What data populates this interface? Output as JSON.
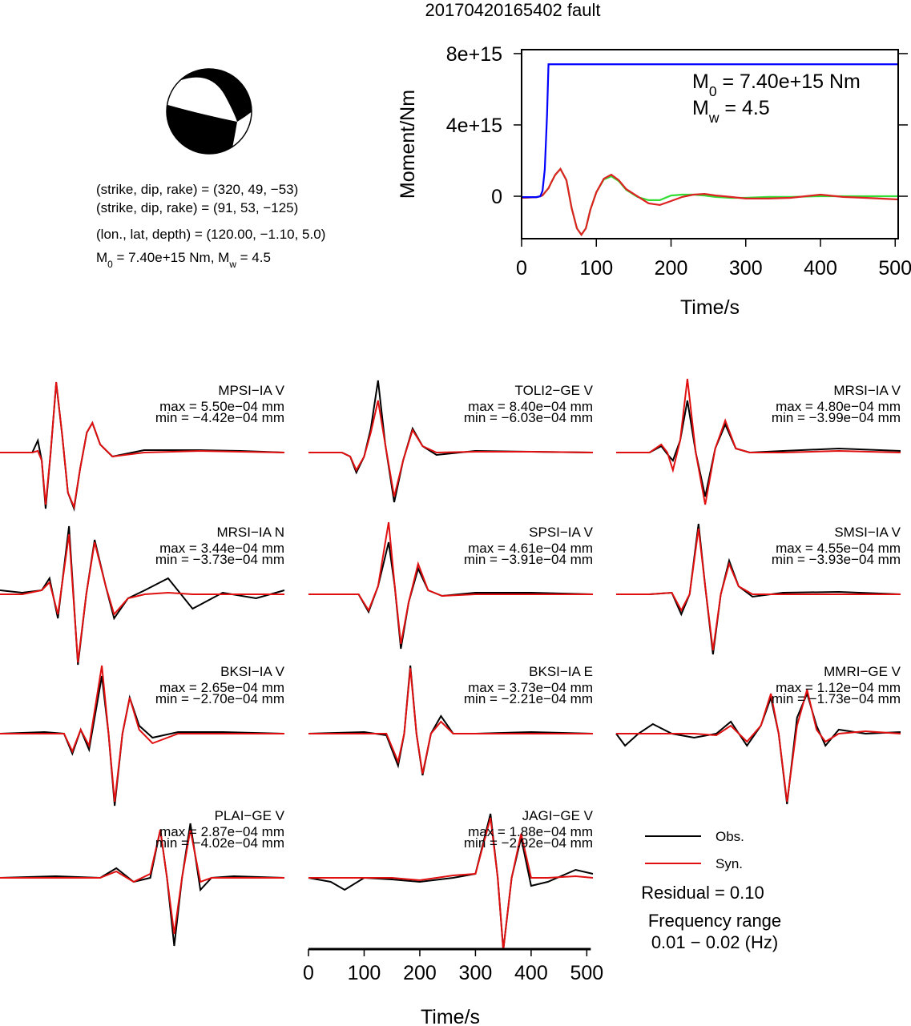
{
  "title": "20170420165402 fault",
  "focal_mechanism": {
    "lines": [
      "(strike, dip, rake) = (320, 49, −53)",
      "(strike, dip, rake) = (91, 53, −125)",
      "(lon., lat, depth) = (120.00, −1.10, 5.0)"
    ],
    "moment_line": [
      "M",
      "0",
      " = 7.40e+15 Nm, M",
      "w",
      " = 4.5"
    ]
  },
  "chart_data": [
    {
      "type": "line",
      "ylabel": "Moment/Nm",
      "xlabel": "Time/s",
      "annotations": [
        [
          "M",
          "0",
          " = 7.40e+15 Nm"
        ],
        [
          "M",
          "w",
          " = 4.5"
        ]
      ],
      "xlim": [
        0,
        504
      ],
      "xticks": [
        0,
        100,
        200,
        300,
        400,
        500
      ],
      "ylim": [
        -2380000000000000.0,
        8220000000000000.0
      ],
      "yticks": [
        {
          "value": 0,
          "label": "0"
        },
        {
          "value": 4000000000000000.0,
          "label": "4e+15"
        },
        {
          "value": 8000000000000000.0,
          "label": "8e+15"
        }
      ],
      "x": [
        0,
        20,
        25,
        28,
        31,
        34,
        36,
        40,
        45,
        52,
        60,
        67,
        74,
        80,
        86,
        92,
        100,
        110,
        120,
        130,
        140,
        155,
        170,
        185,
        200,
        215,
        230,
        245,
        260,
        280,
        300,
        330,
        360,
        400,
        430,
        460,
        504
      ],
      "series": [
        {
          "color": "#33dd33",
          "values": [
            -90000000000000.0,
            -50000000000000.0,
            0,
            50000000000000.0,
            200000000000000.0,
            350000000000000.0,
            450000000000000.0,
            800000000000000.0,
            1200000000000000.0,
            1530000000000000.0,
            900000000000000.0,
            -670000000000000.0,
            -1800000000000000.0,
            -2160000000000000.0,
            -1800000000000000.0,
            -760000000000000.0,
            220000000000000.0,
            940000000000000.0,
            1120000000000000.0,
            850000000000000.0,
            360000000000000.0,
            -40000000000000.0,
            -220000000000000.0,
            -220000000000000.0,
            40000000000000.0,
            90000000000000.0,
            90000000000000.0,
            40000000000000.0,
            -40000000000000.0,
            -90000000000000.0,
            -90000000000000.0,
            -40000000000000.0,
            -40000000000000.0,
            0,
            0,
            0,
            0
          ]
        },
        {
          "color": "#dd2222",
          "values": [
            -90000000000000.0,
            -50000000000000.0,
            0,
            50000000000000.0,
            200000000000000.0,
            350000000000000.0,
            450000000000000.0,
            800000000000000.0,
            1200000000000000.0,
            1530000000000000.0,
            900000000000000.0,
            -670000000000000.0,
            -1800000000000000.0,
            -2160000000000000.0,
            -1800000000000000.0,
            -760000000000000.0,
            220000000000000.0,
            980000000000000.0,
            1210000000000000.0,
            900000000000000.0,
            400000000000000.0,
            0,
            -400000000000000.0,
            -490000000000000.0,
            -270000000000000.0,
            -40000000000000.0,
            90000000000000.0,
            130000000000000.0,
            40000000000000.0,
            -40000000000000.0,
            -130000000000000.0,
            -130000000000000.0,
            -90000000000000.0,
            90000000000000.0,
            -40000000000000.0,
            -90000000000000.0,
            -180000000000000.0
          ]
        },
        {
          "color": "#0000ff",
          "values": [
            -50000000000000.0,
            -50000000000000.0,
            0,
            300000000000000.0,
            1500000000000000.0,
            4500000000000000.0,
            7400000000000000.0,
            7400000000000000.0,
            7400000000000000.0,
            7400000000000000.0,
            7400000000000000.0,
            7400000000000000.0,
            7400000000000000.0,
            7400000000000000.0,
            7400000000000000.0,
            7400000000000000.0,
            7400000000000000.0,
            7400000000000000.0,
            7400000000000000.0,
            7400000000000000.0,
            7400000000000000.0,
            7400000000000000.0,
            7400000000000000.0,
            7400000000000000.0,
            7400000000000000.0,
            7400000000000000.0,
            7400000000000000.0,
            7400000000000000.0,
            7400000000000000.0,
            7400000000000000.0,
            7400000000000000.0,
            7400000000000000.0,
            7400000000000000.0,
            7400000000000000.0,
            7400000000000000.0,
            7400000000000000.0,
            7400000000000000.0
          ]
        }
      ]
    },
    {
      "type": "waveforms",
      "xlabel": "Time/s",
      "xlim": [
        0,
        511
      ],
      "xticks": [
        0,
        100,
        200,
        300,
        400,
        500
      ],
      "legend": [
        {
          "name": "Obs.",
          "color": "#000000"
        },
        {
          "name": "Syn.",
          "color": "#e01010"
        }
      ],
      "residual": "Residual = 0.10",
      "frequency_title": "Frequency range",
      "frequency": "0.01 − 0.02 (Hz)",
      "panels": [
        {
          "station": "MPSI−IA V",
          "max": "max = 5.50e−04 mm",
          "min": "min = −4.42e−04 mm",
          "x": [
            0,
            58,
            68,
            75,
            82,
            91,
            101,
            112,
            122,
            133,
            144,
            156,
            166,
            180,
            202,
            259,
            360,
            432,
            511
          ],
          "obs": [
            0,
            0,
            0.15,
            -0.1,
            -0.7,
            0,
            0.87,
            0.2,
            -0.5,
            -0.7,
            -0.2,
            0.25,
            0.37,
            0.1,
            -0.05,
            0.03,
            0.03,
            0.02,
            0
          ],
          "syn": [
            0,
            0,
            0.02,
            -0.1,
            -0.65,
            0,
            0.88,
            0.2,
            -0.5,
            -0.68,
            -0.2,
            0.25,
            0.37,
            0.1,
            -0.05,
            0,
            0.02,
            0.01,
            0
          ]
        },
        {
          "station": "TOLI2−GE V",
          "max": "max = 8.40e−04 mm",
          "min": "min = −6.03e−04 mm",
          "x": [
            0,
            60,
            75,
            86,
            100,
            112,
            125,
            138,
            154,
            170,
            187,
            205,
            230,
            300,
            400,
            511
          ],
          "obs": [
            0,
            0,
            -0.05,
            -0.25,
            -0.05,
            0.3,
            0.9,
            0.1,
            -0.62,
            -0.1,
            0.3,
            0.08,
            -0.03,
            0.02,
            0.01,
            0
          ],
          "syn": [
            0,
            0,
            -0.05,
            -0.22,
            -0.05,
            0.25,
            0.65,
            0.1,
            -0.55,
            -0.1,
            0.28,
            0.08,
            0,
            0.01,
            0.01,
            0
          ]
        },
        {
          "station": "MRSI−IA V",
          "max": "max = 4.80e−04 mm",
          "min": "min = −3.99e−04 mm",
          "x": [
            0,
            60,
            81,
            92,
            102,
            115,
            128,
            143,
            160,
            178,
            196,
            215,
            240,
            300,
            400,
            511
          ],
          "obs": [
            0,
            0,
            0.08,
            -0.02,
            -0.1,
            0.15,
            0.65,
            0,
            -0.55,
            0.05,
            0.35,
            0.05,
            0,
            0.02,
            0.05,
            0.02
          ],
          "syn": [
            0,
            0,
            0.1,
            0,
            -0.22,
            0.15,
            0.92,
            0,
            -0.65,
            0.05,
            0.4,
            0.05,
            0,
            0,
            0.02,
            0
          ]
        },
        {
          "station": "MRSI−IA N",
          "max": "max = 3.44e−04 mm",
          "min": "min = −3.73e−04 mm",
          "x": [
            0,
            40,
            75,
            89,
            104,
            124,
            140,
            155,
            170,
            190,
            205,
            230,
            260,
            302,
            346,
            400,
            460,
            511
          ],
          "obs": [
            0.05,
            0.02,
            0.05,
            0.2,
            -0.3,
            0.85,
            -0.88,
            0,
            0.68,
            0.1,
            -0.3,
            -0.05,
            0.05,
            0.2,
            -0.18,
            0.02,
            -0.05,
            0.05
          ],
          "syn": [
            0,
            0,
            0.05,
            0.15,
            -0.25,
            0.75,
            -0.85,
            0,
            0.65,
            0.1,
            -0.25,
            -0.05,
            0,
            0.02,
            0,
            0,
            0,
            0
          ]
        },
        {
          "station": "SPSI−IA V",
          "max": "max = 4.61e−04 mm",
          "min": "min = −3.91e−04 mm",
          "x": [
            0,
            60,
            90,
            108,
            125,
            144,
            155,
            166,
            180,
            197,
            215,
            240,
            300,
            400,
            511
          ],
          "obs": [
            0,
            0,
            0,
            -0.22,
            0.1,
            0.65,
            0.1,
            -0.68,
            -0.1,
            0.32,
            0.05,
            -0.02,
            0.02,
            0.02,
            0
          ],
          "syn": [
            0,
            0,
            0,
            -0.2,
            0.1,
            0.9,
            0.1,
            -0.62,
            -0.1,
            0.38,
            0.05,
            -0.02,
            0,
            0,
            0
          ]
        },
        {
          "station": "SMSI−IA V",
          "max": "max = 4.55e−04 mm",
          "min": "min = −3.93e−04 mm",
          "x": [
            0,
            60,
            100,
            117,
            132,
            148,
            160,
            174,
            188,
            203,
            220,
            245,
            300,
            400,
            511
          ],
          "obs": [
            0,
            0,
            0.02,
            -0.25,
            0,
            0.88,
            0.1,
            -0.75,
            0,
            0.42,
            0.1,
            -0.03,
            0.02,
            0.03,
            0
          ],
          "syn": [
            0,
            0,
            0.02,
            -0.2,
            0,
            0.82,
            0.1,
            -0.7,
            0,
            0.38,
            0.1,
            0,
            0,
            0,
            0
          ]
        },
        {
          "station": "BKSI−IA V",
          "max": "max = 2.65e−04 mm",
          "min": "min = −2.70e−04 mm",
          "x": [
            0,
            80,
            115,
            130,
            145,
            160,
            183,
            195,
            206,
            220,
            233,
            250,
            274,
            320,
            400,
            511
          ],
          "obs": [
            0,
            0.02,
            0,
            -0.25,
            0.05,
            -0.2,
            0.72,
            0,
            -0.9,
            0,
            0.45,
            0.1,
            -0.05,
            0.02,
            0.02,
            0
          ],
          "syn": [
            0,
            0,
            0,
            -0.22,
            0.05,
            -0.15,
            0.85,
            0,
            -0.85,
            0,
            0.45,
            0.05,
            -0.12,
            0,
            0,
            0
          ]
        },
        {
          "station": "BKSI−IA E",
          "max": "max = 3.73e−04 mm",
          "min": "min = −2.21e−04 mm",
          "x": [
            0,
            100,
            140,
            161,
            172,
            183,
            194,
            205,
            220,
            238,
            260,
            300,
            400,
            511
          ],
          "obs": [
            0,
            0.02,
            -0.02,
            -0.4,
            0,
            0.85,
            0,
            -0.52,
            0,
            0.22,
            0,
            0,
            0.02,
            0
          ],
          "syn": [
            0,
            0,
            0,
            -0.35,
            0,
            0.82,
            0,
            -0.5,
            0,
            0.15,
            0,
            0,
            0,
            0
          ]
        },
        {
          "station": "MMRI−GE V",
          "max": "max = 1.12e−04 mm",
          "min": "min = −1.73e−04 mm",
          "x": [
            0,
            16,
            40,
            66,
            100,
            140,
            180,
            206,
            235,
            260,
            278,
            292,
            307,
            325,
            343,
            360,
            376,
            400,
            448,
            511
          ],
          "obs": [
            0,
            -0.15,
            0,
            0.12,
            0,
            -0.05,
            0,
            0.15,
            -0.15,
            0.1,
            0.45,
            0,
            -0.88,
            0.2,
            0.5,
            0.1,
            -0.15,
            0.05,
            0,
            0.02
          ],
          "syn": [
            0,
            0,
            0,
            0,
            0,
            0,
            -0.02,
            0.1,
            -0.1,
            0.1,
            0.5,
            0,
            -0.85,
            0.1,
            0.55,
            0.05,
            -0.1,
            0,
            0.03,
            0
          ]
        },
        {
          "station": "PLAI−GE V",
          "max": "max = 2.87e−04 mm",
          "min": "min = −4.02e−04 mm",
          "x": [
            0,
            100,
            180,
            209,
            240,
            270,
            288,
            300,
            313,
            327,
            342,
            360,
            380,
            420,
            511
          ],
          "obs": [
            0,
            0.02,
            0,
            0.12,
            -0.05,
            0,
            0.6,
            0,
            -0.85,
            0,
            0.68,
            -0.15,
            0,
            0.02,
            0
          ],
          "syn": [
            0,
            0,
            0,
            0.08,
            -0.05,
            0.05,
            0.6,
            0,
            -0.7,
            0,
            0.6,
            -0.05,
            0,
            0,
            0
          ]
        },
        {
          "station": "JAGI−GE V",
          "max": "max = 1.88e−04 mm",
          "min": "min = −2.92e−04 mm",
          "x": [
            0,
            40,
            65,
            100,
            150,
            200,
            260,
            300,
            327,
            340,
            350,
            365,
            382,
            400,
            430,
            480,
            511
          ],
          "obs": [
            0,
            -0.05,
            -0.15,
            0,
            -0.02,
            -0.05,
            0,
            0.05,
            0.8,
            0,
            -0.9,
            0,
            0.5,
            -0.1,
            -0.05,
            0.1,
            0.05
          ],
          "syn": [
            0,
            0,
            0,
            0,
            0,
            -0.03,
            0.03,
            0.05,
            0.75,
            0,
            -0.9,
            0,
            0.55,
            0,
            0,
            0.02,
            0
          ]
        }
      ]
    }
  ]
}
